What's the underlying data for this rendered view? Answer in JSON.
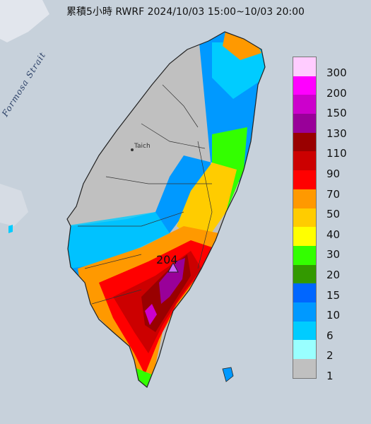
{
  "title": "累積5小時 RWRF 2024/10/03 15:00~10/03 20:00",
  "strait_label": "Formosa Strait",
  "city_label": "Taich",
  "peak_value": "204",
  "legend": {
    "labels": [
      "300",
      "200",
      "150",
      "130",
      "110",
      "90",
      "70",
      "50",
      "40",
      "30",
      "20",
      "15",
      "10",
      "6",
      "2",
      "1"
    ],
    "colors": [
      "#ffccff",
      "#ff00ff",
      "#cc00cc",
      "#990099",
      "#990000",
      "#cc0000",
      "#ff0000",
      "#ff9900",
      "#ffcc00",
      "#ffff00",
      "#33ff00",
      "#339900",
      "#0066ff",
      "#0099ff",
      "#00ccff",
      "#99ffff",
      "#c0c0c0"
    ]
  }
}
